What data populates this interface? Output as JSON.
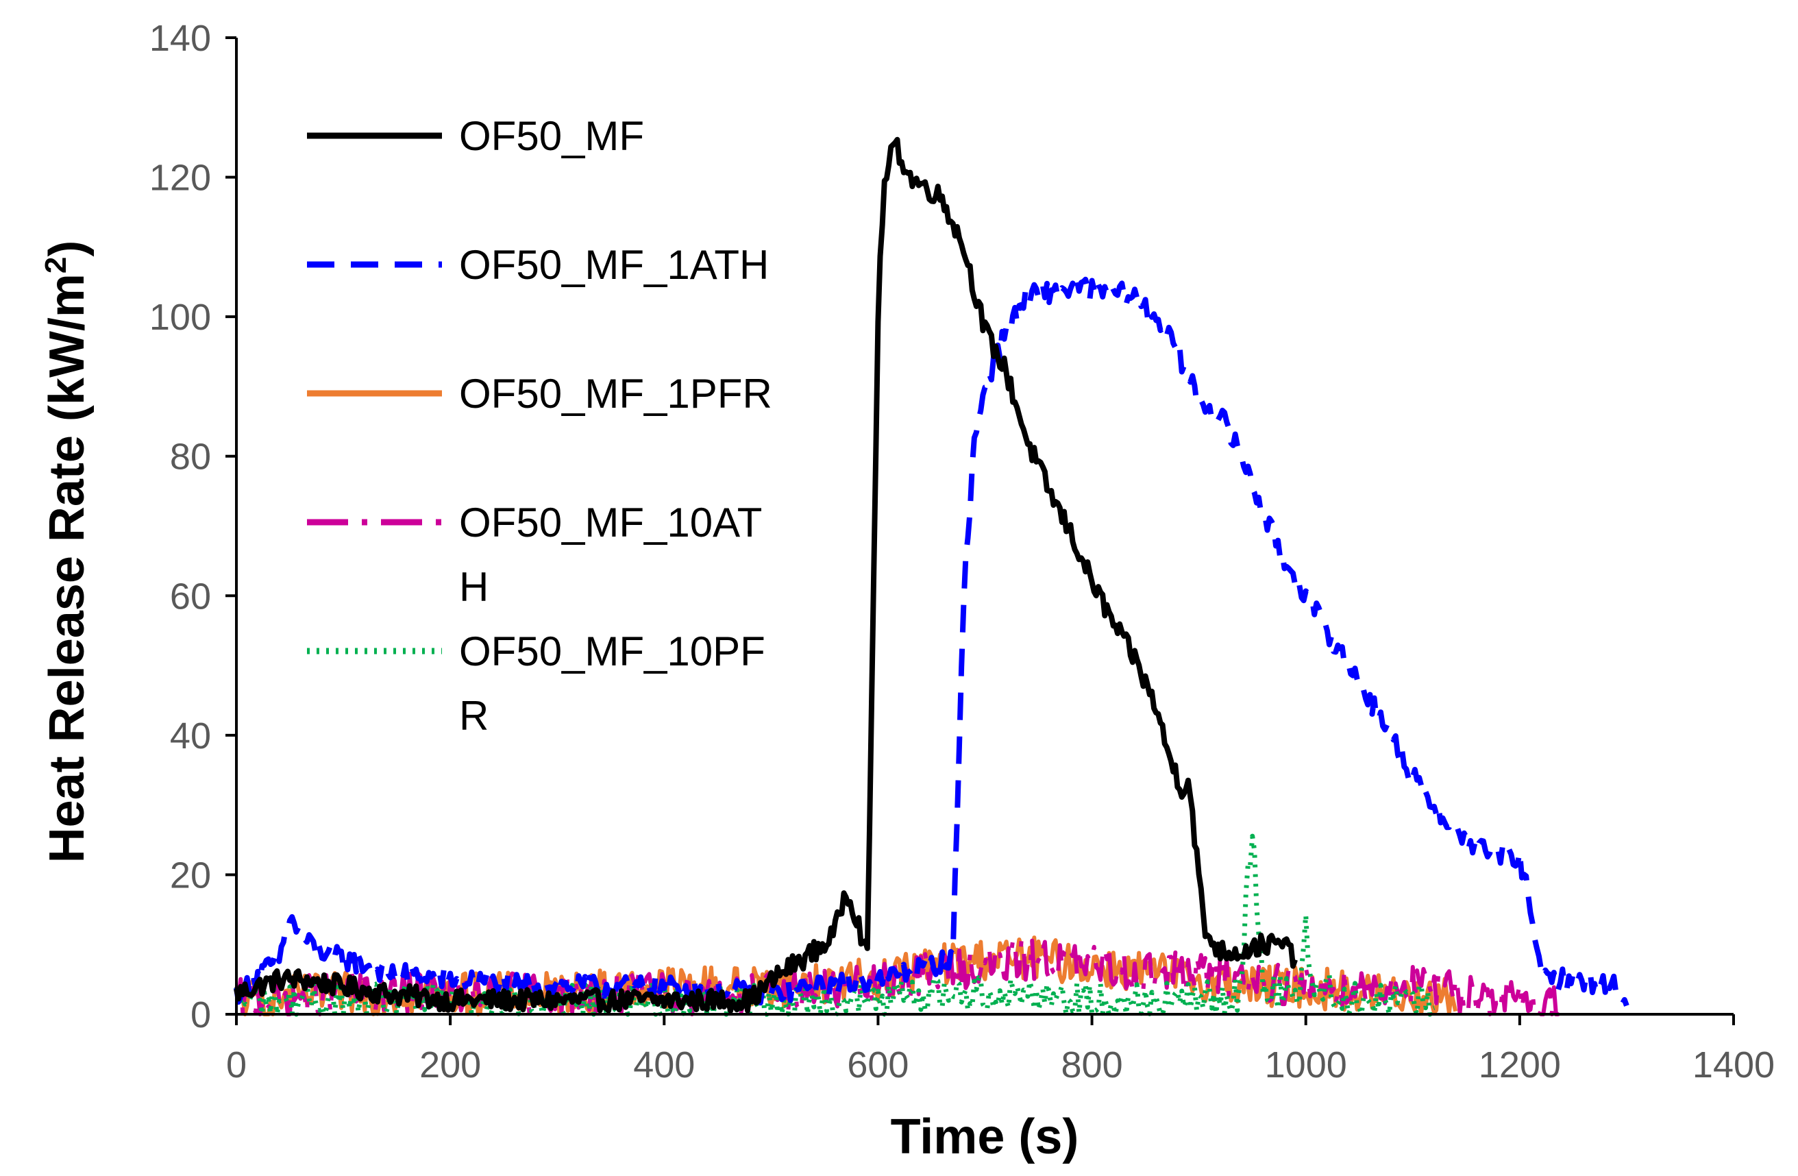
{
  "chart_data": {
    "type": "line",
    "title": "",
    "xlabel": "Time (s)",
    "ylabel_main": "Heat Release Rate (kW/m",
    "ylabel_sup": "2",
    "ylabel_tail": ")",
    "xlim": [
      0,
      1400
    ],
    "ylim": [
      0,
      140
    ],
    "xticks": [
      0,
      200,
      400,
      600,
      800,
      1000,
      1200,
      1400
    ],
    "yticks": [
      0,
      20,
      40,
      60,
      80,
      100,
      120,
      140
    ],
    "grid": false,
    "legend_position": "top-left",
    "series": [
      {
        "name": "OF50_MF",
        "color": "#000000",
        "dash": "solid",
        "noise": 1.5,
        "points": [
          [
            0,
            3
          ],
          [
            20,
            4
          ],
          [
            40,
            5
          ],
          [
            60,
            5
          ],
          [
            100,
            4
          ],
          [
            140,
            3
          ],
          [
            200,
            2
          ],
          [
            300,
            2
          ],
          [
            400,
            2
          ],
          [
            480,
            2
          ],
          [
            510,
            6
          ],
          [
            530,
            8
          ],
          [
            550,
            10
          ],
          [
            560,
            12
          ],
          [
            570,
            18
          ],
          [
            580,
            14
          ],
          [
            590,
            8
          ],
          [
            600,
            100
          ],
          [
            605,
            118
          ],
          [
            615,
            125
          ],
          [
            630,
            120
          ],
          [
            660,
            117
          ],
          [
            680,
            110
          ],
          [
            700,
            98
          ],
          [
            720,
            92
          ],
          [
            740,
            82
          ],
          [
            760,
            75
          ],
          [
            780,
            69
          ],
          [
            800,
            62
          ],
          [
            820,
            56
          ],
          [
            840,
            51
          ],
          [
            860,
            44
          ],
          [
            870,
            38
          ],
          [
            880,
            34
          ],
          [
            885,
            32
          ],
          [
            890,
            34
          ],
          [
            900,
            20
          ],
          [
            905,
            12
          ],
          [
            920,
            9
          ],
          [
            940,
            9
          ],
          [
            960,
            10
          ],
          [
            980,
            10
          ],
          [
            990,
            8
          ]
        ]
      },
      {
        "name": "OF50_MF_1ATH",
        "color": "#0000ff",
        "dash": "40,24",
        "noise": 1.5,
        "points": [
          [
            0,
            3
          ],
          [
            40,
            8
          ],
          [
            50,
            14
          ],
          [
            60,
            11
          ],
          [
            80,
            9
          ],
          [
            100,
            8
          ],
          [
            140,
            6
          ],
          [
            200,
            5
          ],
          [
            300,
            4
          ],
          [
            400,
            4
          ],
          [
            500,
            3
          ],
          [
            600,
            5
          ],
          [
            650,
            7
          ],
          [
            670,
            8
          ],
          [
            680,
            60
          ],
          [
            690,
            82
          ],
          [
            700,
            90
          ],
          [
            720,
            98
          ],
          [
            740,
            103
          ],
          [
            780,
            104
          ],
          [
            800,
            104
          ],
          [
            840,
            103
          ],
          [
            860,
            100
          ],
          [
            880,
            95
          ],
          [
            900,
            88
          ],
          [
            920,
            86
          ],
          [
            940,
            80
          ],
          [
            960,
            72
          ],
          [
            980,
            65
          ],
          [
            1000,
            60
          ],
          [
            1020,
            55
          ],
          [
            1040,
            50
          ],
          [
            1060,
            45
          ],
          [
            1080,
            40
          ],
          [
            1100,
            34
          ],
          [
            1120,
            30
          ],
          [
            1140,
            26
          ],
          [
            1160,
            24
          ],
          [
            1180,
            23
          ],
          [
            1200,
            22
          ],
          [
            1210,
            16
          ],
          [
            1220,
            5
          ],
          [
            1250,
            5
          ],
          [
            1290,
            4
          ],
          [
            1300,
            1
          ]
        ]
      },
      {
        "name": "OF50_MF_1PFR",
        "color": "#ed7d31",
        "dash": "solid",
        "noise": 3,
        "points": [
          [
            0,
            2
          ],
          [
            100,
            3
          ],
          [
            200,
            3
          ],
          [
            300,
            3
          ],
          [
            400,
            4
          ],
          [
            500,
            4
          ],
          [
            600,
            5
          ],
          [
            650,
            7
          ],
          [
            700,
            8
          ],
          [
            750,
            8
          ],
          [
            800,
            7
          ],
          [
            850,
            6
          ],
          [
            900,
            5
          ],
          [
            950,
            4
          ],
          [
            1000,
            4
          ],
          [
            1050,
            3
          ],
          [
            1100,
            3
          ],
          [
            1140,
            2
          ]
        ]
      },
      {
        "name": "OF50_MF_10ATH",
        "color": "#cc0099",
        "dash": "60,20,8,20",
        "noise": 3,
        "points": [
          [
            0,
            2
          ],
          [
            100,
            3
          ],
          [
            200,
            3
          ],
          [
            300,
            3
          ],
          [
            400,
            3
          ],
          [
            500,
            3
          ],
          [
            600,
            4
          ],
          [
            650,
            6
          ],
          [
            700,
            7
          ],
          [
            750,
            8
          ],
          [
            800,
            7
          ],
          [
            850,
            6
          ],
          [
            900,
            6
          ],
          [
            950,
            5
          ],
          [
            1000,
            4
          ],
          [
            1050,
            4
          ],
          [
            1100,
            4
          ],
          [
            1150,
            3
          ],
          [
            1200,
            2
          ],
          [
            1240,
            1
          ]
        ]
      },
      {
        "name": "OF50_MF_10PFR",
        "color": "#00b050",
        "dash": "4,10",
        "noise": 2.5,
        "points": [
          [
            0,
            2
          ],
          [
            100,
            2
          ],
          [
            200,
            2
          ],
          [
            300,
            2
          ],
          [
            400,
            2
          ],
          [
            500,
            2
          ],
          [
            600,
            2
          ],
          [
            650,
            3
          ],
          [
            700,
            3
          ],
          [
            750,
            3
          ],
          [
            800,
            2
          ],
          [
            850,
            2
          ],
          [
            900,
            2
          ],
          [
            940,
            3
          ],
          [
            945,
            18
          ],
          [
            950,
            27
          ],
          [
            955,
            14
          ],
          [
            960,
            4
          ],
          [
            980,
            3
          ],
          [
            995,
            4
          ],
          [
            1000,
            14
          ],
          [
            1005,
            4
          ],
          [
            1050,
            2
          ],
          [
            1100,
            2
          ],
          [
            1120,
            1
          ]
        ]
      }
    ]
  },
  "legend": {
    "items": [
      {
        "line1": "OF50_MF",
        "line2": ""
      },
      {
        "line1": "OF50_MF_1ATH",
        "line2": ""
      },
      {
        "line1": "OF50_MF_1PFR",
        "line2": ""
      },
      {
        "line1": "OF50_MF_10AT",
        "line2": "H"
      },
      {
        "line1": "OF50_MF_10PF",
        "line2": "R"
      }
    ]
  }
}
